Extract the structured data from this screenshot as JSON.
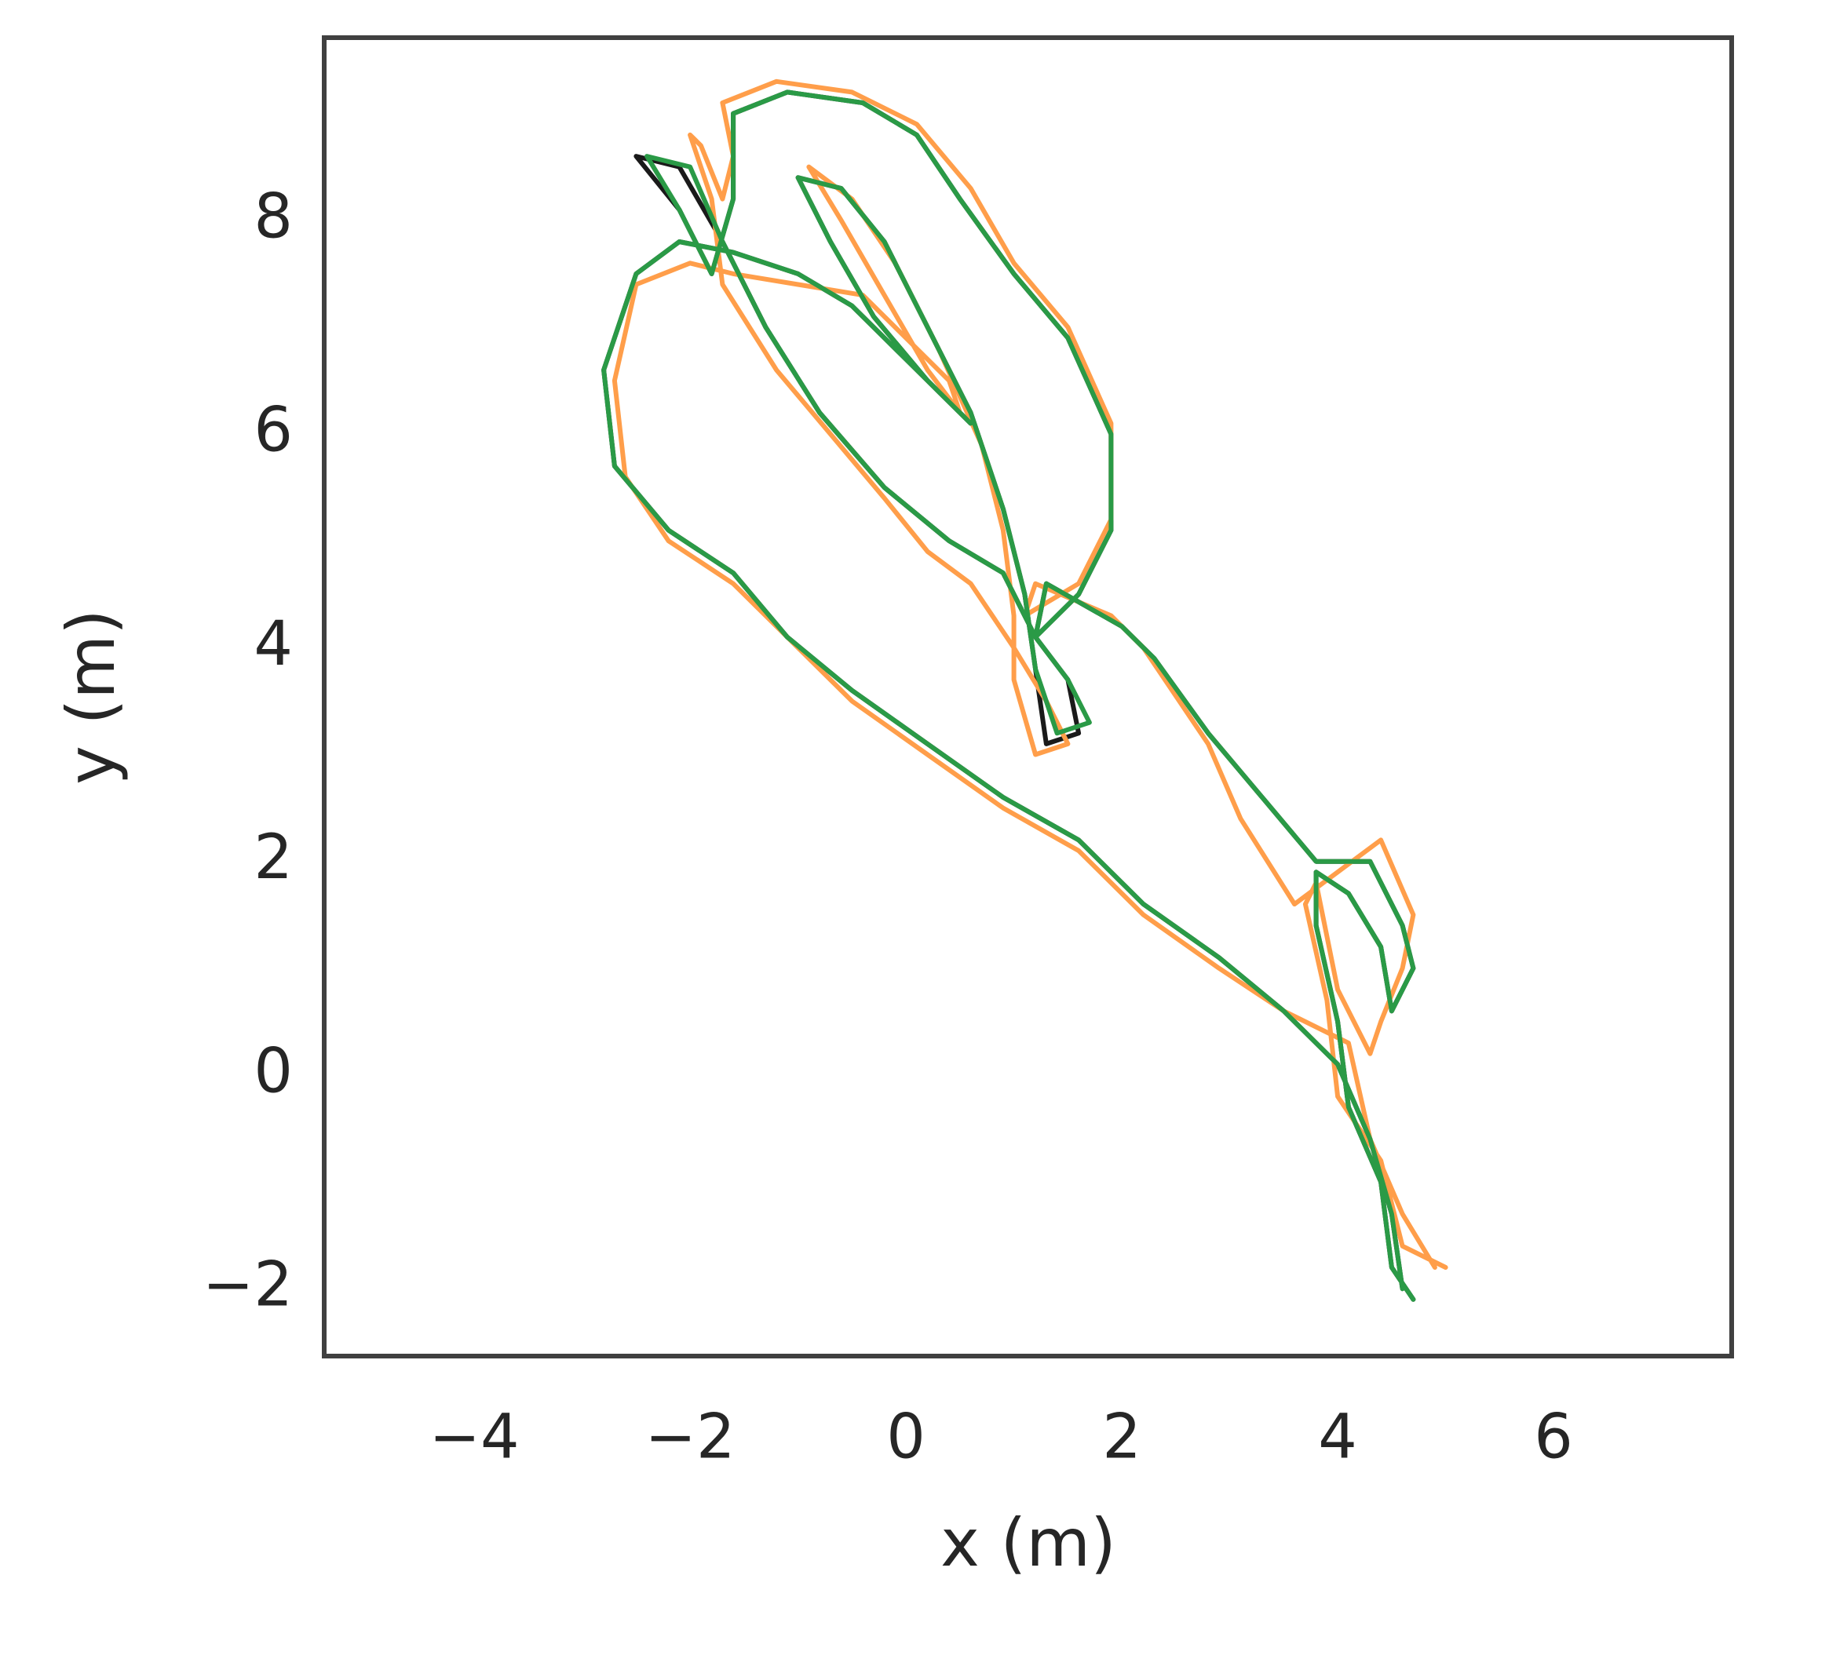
{
  "chart_data": {
    "type": "line",
    "xlabel": "x (m)",
    "ylabel": "y (m)",
    "xlim": [
      -5.39,
      7.65
    ],
    "ylim": [
      -2.63,
      9.71
    ],
    "xticks": [
      {
        "value": -4,
        "label": "−4"
      },
      {
        "value": -2,
        "label": "−2"
      },
      0,
      2,
      4,
      6
    ],
    "yticks": [
      {
        "value": -2,
        "label": "−2"
      },
      0,
      2,
      4,
      6,
      8
    ],
    "grid": false,
    "series": [
      {
        "color": "#1a1a1a",
        "x": [
          4.6,
          4.5,
          4.3,
          4.0,
          3.5,
          2.9,
          2.2,
          1.6,
          0.9,
          0.2,
          -0.5,
          -1.1,
          -1.6,
          -2.2,
          -2.7,
          -2.8,
          -2.5,
          -2.1,
          -1.6,
          -1.0,
          -0.5,
          0.0,
          0.4,
          0.6,
          0.2,
          -0.3,
          -0.7,
          -1.0,
          -0.6,
          -0.2,
          0.2,
          0.6,
          0.9,
          1.1,
          1.2,
          1.3,
          1.6,
          1.5,
          1.2,
          0.9,
          0.4,
          -0.2,
          -0.8,
          -1.3,
          -1.7,
          -2.1,
          -2.5,
          -2.1,
          -1.8,
          -1.6,
          -1.6,
          -1.1,
          -0.4,
          0.1,
          0.5,
          1.0,
          1.5,
          1.9,
          1.9,
          1.6,
          1.2,
          1.3,
          2.0,
          2.3,
          2.8,
          3.3,
          3.8,
          4.3,
          4.6,
          4.7,
          4.5,
          4.4,
          4.1,
          3.8,
          3.8,
          4.0,
          4.1,
          4.4,
          4.5,
          4.7
        ],
        "y": [
          -2.0,
          -1.3,
          -0.6,
          0.1,
          0.6,
          1.1,
          1.6,
          2.2,
          2.6,
          3.1,
          3.6,
          4.1,
          4.7,
          5.1,
          5.7,
          6.6,
          7.5,
          7.8,
          7.7,
          7.5,
          7.2,
          6.7,
          6.3,
          6.1,
          6.5,
          7.1,
          7.8,
          8.4,
          8.3,
          7.8,
          7.0,
          6.2,
          5.3,
          4.5,
          3.8,
          3.1,
          3.2,
          3.7,
          4.1,
          4.7,
          5.0,
          5.5,
          6.2,
          7.0,
          7.8,
          8.5,
          8.6,
          8.1,
          7.5,
          8.2,
          9.0,
          9.2,
          9.1,
          8.8,
          8.2,
          7.5,
          6.9,
          6.0,
          5.1,
          4.5,
          4.1,
          4.6,
          4.2,
          3.9,
          3.2,
          2.6,
          2.0,
          2.0,
          1.4,
          1.0,
          0.6,
          1.2,
          1.7,
          1.9,
          1.4,
          0.5,
          -0.3,
          -1.0,
          -1.8,
          -2.1
        ]
      },
      {
        "color": "#ff9e4a",
        "x": [
          4.9,
          4.6,
          4.3,
          4.1,
          3.5,
          2.9,
          2.2,
          1.6,
          0.9,
          0.2,
          -0.5,
          -1.1,
          -1.6,
          -2.2,
          -2.6,
          -2.7,
          -2.5,
          -2.0,
          -1.6,
          -1.0,
          -0.4,
          0.0,
          0.4,
          0.5,
          0.2,
          -0.2,
          -0.6,
          -0.9,
          -0.5,
          -0.1,
          0.3,
          0.7,
          0.9,
          1.0,
          1.0,
          1.2,
          1.5,
          1.3,
          1.0,
          0.6,
          0.2,
          -0.2,
          -0.7,
          -1.2,
          -1.7,
          -1.8,
          -2.0,
          -1.9,
          -1.7,
          -1.6,
          -1.7,
          -1.2,
          -0.5,
          0.1,
          0.6,
          1.0,
          1.5,
          1.9,
          1.9,
          1.6,
          1.1,
          1.2,
          1.9,
          2.2,
          2.8,
          3.1,
          3.6,
          4.4,
          4.7,
          4.6,
          4.4,
          4.3,
          4.0,
          3.8,
          3.7,
          3.9,
          4.0,
          4.4,
          4.6,
          5.0
        ],
        "y": [
          -1.8,
          -1.3,
          -0.6,
          0.3,
          0.6,
          1.0,
          1.5,
          2.1,
          2.5,
          3.0,
          3.5,
          4.1,
          4.6,
          5.0,
          5.6,
          6.5,
          7.4,
          7.6,
          7.5,
          7.4,
          7.3,
          6.9,
          6.5,
          6.2,
          6.6,
          7.3,
          8.0,
          8.5,
          8.2,
          7.6,
          6.8,
          5.9,
          5.1,
          4.3,
          3.7,
          3.0,
          3.1,
          3.5,
          4.0,
          4.6,
          4.9,
          5.4,
          6.0,
          6.6,
          7.4,
          8.2,
          8.8,
          8.7,
          8.2,
          8.6,
          9.1,
          9.3,
          9.2,
          8.9,
          8.3,
          7.6,
          7.0,
          6.1,
          5.2,
          4.6,
          4.3,
          4.6,
          4.3,
          4.0,
          3.1,
          2.4,
          1.6,
          2.2,
          1.5,
          1.0,
          0.5,
          0.2,
          0.8,
          1.8,
          1.6,
          0.7,
          -0.2,
          -0.8,
          -1.6,
          -1.8
        ]
      },
      {
        "color": "#2a9a46",
        "x": [
          4.6,
          4.5,
          4.3,
          4.0,
          3.5,
          2.9,
          2.2,
          1.6,
          0.9,
          0.2,
          -0.5,
          -1.1,
          -1.6,
          -2.2,
          -2.7,
          -2.8,
          -2.5,
          -2.1,
          -1.6,
          -1.0,
          -0.5,
          0.0,
          0.4,
          0.6,
          0.2,
          -0.3,
          -0.7,
          -1.0,
          -0.6,
          -0.2,
          0.2,
          0.6,
          0.9,
          1.1,
          1.2,
          1.4,
          1.7,
          1.5,
          1.2,
          0.9,
          0.4,
          -0.2,
          -0.8,
          -1.3,
          -1.7,
          -2.0,
          -2.4,
          -2.1,
          -1.8,
          -1.6,
          -1.6,
          -1.1,
          -0.4,
          0.1,
          0.5,
          1.0,
          1.5,
          1.9,
          1.9,
          1.6,
          1.2,
          1.3,
          2.0,
          2.3,
          2.8,
          3.3,
          3.8,
          4.3,
          4.6,
          4.7,
          4.5,
          4.4,
          4.1,
          3.8,
          3.8,
          4.0,
          4.1,
          4.4,
          4.5,
          4.7
        ],
        "y": [
          -2.0,
          -1.3,
          -0.6,
          0.1,
          0.6,
          1.1,
          1.6,
          2.2,
          2.6,
          3.1,
          3.6,
          4.1,
          4.7,
          5.1,
          5.7,
          6.6,
          7.5,
          7.8,
          7.7,
          7.5,
          7.2,
          6.7,
          6.3,
          6.1,
          6.5,
          7.1,
          7.8,
          8.4,
          8.3,
          7.8,
          7.0,
          6.2,
          5.3,
          4.5,
          3.8,
          3.2,
          3.3,
          3.7,
          4.1,
          4.7,
          5.0,
          5.5,
          6.2,
          7.0,
          7.8,
          8.5,
          8.6,
          8.1,
          7.5,
          8.2,
          9.0,
          9.2,
          9.1,
          8.8,
          8.2,
          7.5,
          6.9,
          6.0,
          5.1,
          4.5,
          4.1,
          4.6,
          4.2,
          3.9,
          3.2,
          2.6,
          2.0,
          2.0,
          1.4,
          1.0,
          0.6,
          1.2,
          1.7,
          1.9,
          1.4,
          0.5,
          -0.3,
          -1.0,
          -1.8,
          -2.1
        ]
      }
    ]
  }
}
